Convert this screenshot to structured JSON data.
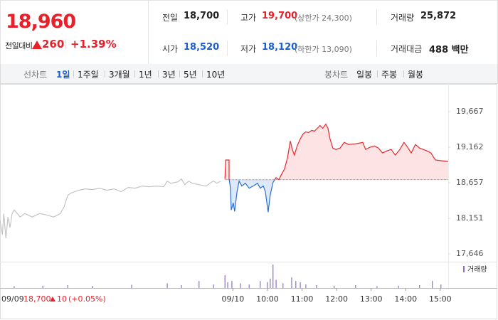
{
  "quote": {
    "price": "18,960",
    "change_label": "전일대비",
    "change": "260",
    "rate": "+1.39%"
  },
  "summary": [
    [
      {
        "label": "전일",
        "value": "18,700"
      },
      {
        "label": "고가",
        "value": "19,700",
        "limit": "(상한가 24,300)"
      },
      {
        "label": "거래량",
        "value": "25,872"
      }
    ],
    [
      {
        "label": "시가",
        "value": "18,520"
      },
      {
        "label": "저가",
        "value": "18,120",
        "limit": "(하한가 13,090)"
      },
      {
        "label": "거래대금",
        "value": "488 백만"
      }
    ]
  ],
  "tabs": {
    "line_label": "선차트",
    "line_periods": [
      "1일",
      "1주일",
      "3개월",
      "1년",
      "3년",
      "5년",
      "10년"
    ],
    "candle_label": "봉차트",
    "candle_periods": [
      "일봉",
      "주봉",
      "월봉"
    ]
  },
  "chart_data": {
    "type": "line",
    "baseline": 18700,
    "xlim": [
      2.26,
      15.23
    ],
    "ylim": [
      17556,
      19768
    ],
    "xticks": [
      {
        "value": 9,
        "label": "09/10"
      },
      {
        "value": 10,
        "label": "10:00"
      },
      {
        "value": 11,
        "label": "11:00"
      },
      {
        "value": 12,
        "label": "12:00"
      },
      {
        "value": 13,
        "label": "13:00"
      },
      {
        "value": 14,
        "label": "14:00"
      },
      {
        "value": 15,
        "label": "15:00"
      }
    ],
    "yticks": [
      {
        "value": 17646,
        "label": "17,646"
      },
      {
        "value": 18151,
        "label": "18,151"
      },
      {
        "value": 18657,
        "label": "18,657"
      },
      {
        "value": 19162,
        "label": "19,162"
      },
      {
        "value": 19667,
        "label": "19,667"
      }
    ],
    "series": [
      {
        "color": "#c4c4c4",
        "x": [
          2.26,
          2.33,
          2.37,
          2.43,
          2.49,
          2.55,
          2.61,
          2.67,
          2.76,
          2.84,
          2.98,
          3.19,
          3.4,
          3.6,
          3.81,
          4.01,
          4.12,
          4.22,
          4.32,
          4.53,
          4.73,
          4.94,
          5.14,
          5.35,
          5.56,
          5.76,
          5.97,
          6.17,
          6.38,
          6.58,
          6.79,
          7.0,
          7.1,
          7.2,
          7.41,
          7.51,
          7.61,
          7.72,
          7.82,
          8.02,
          8.23,
          8.33,
          8.44,
          8.54,
          8.64
        ],
        "values": [
          18120,
          17920,
          18220,
          17870,
          18170,
          18020,
          18220,
          18270,
          18220,
          18170,
          18220,
          18170,
          18220,
          18200,
          18170,
          18220,
          18320,
          18480,
          18510,
          18550,
          18570,
          18560,
          18580,
          18550,
          18570,
          18530,
          18590,
          18580,
          18610,
          18600,
          18610,
          18600,
          18680,
          18650,
          18670,
          18710,
          18630,
          18680,
          18650,
          18630,
          18610,
          18650,
          18680,
          18650,
          18680
        ]
      },
      {
        "color": "#e8282d",
        "color_down": "#2a6fcf",
        "fill": "#fde3e4",
        "fill_down": "#dde8f8",
        "x": [
          8.77,
          8.79,
          8.89,
          8.89,
          8.93,
          8.95,
          9.01,
          9.05,
          9.12,
          9.18,
          9.26,
          9.36,
          9.47,
          9.59,
          9.71,
          9.79,
          9.88,
          9.94,
          10.02,
          10.08,
          10.16,
          10.25,
          10.33,
          10.41,
          10.49,
          10.58,
          10.66,
          10.72,
          10.78,
          10.86,
          10.95,
          11.03,
          11.11,
          11.19,
          11.28,
          11.36,
          11.44,
          11.52,
          11.6,
          11.69,
          11.75,
          11.81,
          11.89,
          11.98,
          12.1,
          12.22,
          12.35,
          12.55,
          12.76,
          12.84,
          12.96,
          13.09,
          13.21,
          13.33,
          13.46,
          13.58,
          13.7,
          13.83,
          13.95,
          14.03,
          14.16,
          14.28,
          14.4,
          14.61,
          14.73,
          14.86,
          15.02,
          15.23
        ],
        "values": [
          18710,
          18980,
          18980,
          18710,
          18580,
          18270,
          18370,
          18250,
          18530,
          18680,
          18610,
          18650,
          18580,
          18610,
          18650,
          18580,
          18610,
          18530,
          18240,
          18480,
          18660,
          18730,
          18700,
          18780,
          18850,
          19010,
          19250,
          19130,
          19050,
          19180,
          19280,
          19350,
          19380,
          19370,
          19400,
          19390,
          19430,
          19470,
          19430,
          19490,
          19430,
          19280,
          19150,
          19130,
          19150,
          19230,
          19200,
          19210,
          19230,
          19130,
          19160,
          19180,
          19150,
          19080,
          19110,
          19130,
          19050,
          19130,
          19230,
          19180,
          19080,
          19200,
          19150,
          19110,
          19080,
          18980,
          18970,
          18960
        ]
      }
    ],
    "volume": {
      "name": "거래량",
      "color": "#8c6fc4",
      "ylim": [
        0,
        100
      ],
      "x": [
        2.67,
        3.5,
        4.22,
        4.94,
        6.07,
        7.1,
        7.51,
        8.02,
        8.44,
        8.77,
        8.85,
        8.97,
        9.22,
        9.47,
        9.79,
        10.0,
        10.08,
        10.16,
        10.25,
        10.45,
        10.7,
        10.82,
        10.95,
        11.11,
        11.42,
        11.93,
        12.55,
        13.17,
        13.79,
        14.4,
        14.77,
        15.02
      ],
      "values": [
        8,
        10,
        12,
        9,
        14,
        20,
        12,
        30,
        15,
        55,
        25,
        30,
        20,
        15,
        30,
        25,
        40,
        100,
        35,
        20,
        45,
        30,
        25,
        15,
        12,
        10,
        12,
        8,
        10,
        12,
        30,
        15
      ]
    },
    "prev_day": {
      "date": "09/09",
      "close": "18,700",
      "change": "10",
      "rate": "(+0.05%)"
    }
  }
}
